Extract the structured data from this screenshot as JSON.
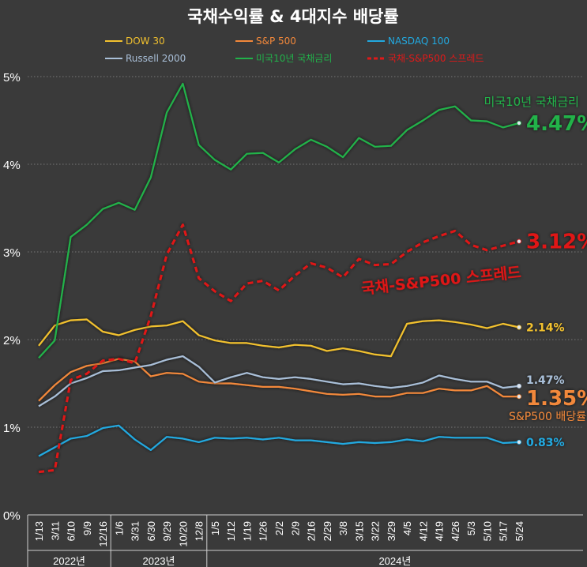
{
  "chart_data": {
    "type": "line",
    "title": "국채수익률 & 4대지수 배당률",
    "legend_position": "top",
    "grid": "horizontal-dotted",
    "ylim": [
      0,
      5
    ],
    "y_ticks": [
      "0%",
      "1%",
      "2%",
      "3%",
      "4%",
      "5%"
    ],
    "categories": [
      "1/13",
      "3/11",
      "6/10",
      "9/9",
      "12/16",
      "1/6",
      "3/31",
      "6/30",
      "9/29",
      "10/20",
      "12/8",
      "1/5",
      "1/12",
      "1/19",
      "1/26",
      "2/2",
      "2/9",
      "2/16",
      "2/29",
      "3/8",
      "3/15",
      "3/22",
      "3/29",
      "4/5",
      "4/12",
      "4/19",
      "4/26",
      "5/3",
      "5/10",
      "5/17",
      "5/24"
    ],
    "year_groups": [
      {
        "label": "2022년",
        "start": 0,
        "end": 4
      },
      {
        "label": "2023년",
        "start": 5,
        "end": 10
      },
      {
        "label": "2024년",
        "start": 11,
        "end": 30
      }
    ],
    "x_values": [
      0,
      1,
      2,
      3,
      4,
      5,
      6,
      7,
      8,
      9,
      10,
      11,
      12,
      13,
      14,
      15,
      16,
      17,
      18,
      19,
      20,
      21,
      22,
      23,
      24,
      25,
      26,
      27,
      28,
      29,
      30
    ],
    "series": [
      {
        "name": "DOW 30",
        "color": "#f2c12e",
        "dashed": false,
        "end_label": "2.14%",
        "values": [
          1.93,
          2.16,
          2.22,
          2.23,
          2.09,
          2.05,
          2.11,
          2.15,
          2.16,
          2.21,
          2.05,
          1.99,
          1.96,
          1.96,
          1.93,
          1.91,
          1.94,
          1.93,
          1.87,
          1.9,
          1.87,
          1.83,
          1.81,
          2.18,
          2.21,
          2.22,
          2.2,
          2.17,
          2.13,
          2.18,
          2.14
        ]
      },
      {
        "name": "S&P 500",
        "color": "#f2883a",
        "dashed": false,
        "end_label": "1.35%",
        "values": [
          1.3,
          1.48,
          1.63,
          1.7,
          1.73,
          1.78,
          1.75,
          1.58,
          1.62,
          1.61,
          1.52,
          1.5,
          1.5,
          1.48,
          1.46,
          1.46,
          1.44,
          1.41,
          1.38,
          1.37,
          1.38,
          1.35,
          1.35,
          1.39,
          1.39,
          1.44,
          1.42,
          1.42,
          1.47,
          1.35,
          1.35
        ]
      },
      {
        "name": "NASDAQ 100",
        "color": "#22a9e0",
        "dashed": false,
        "end_label": "0.83%",
        "values": [
          0.67,
          0.77,
          0.87,
          0.9,
          0.99,
          1.02,
          0.86,
          0.74,
          0.89,
          0.87,
          0.83,
          0.88,
          0.87,
          0.88,
          0.86,
          0.88,
          0.85,
          0.85,
          0.83,
          0.81,
          0.83,
          0.82,
          0.83,
          0.86,
          0.84,
          0.89,
          0.88,
          0.88,
          0.88,
          0.82,
          0.83
        ]
      },
      {
        "name": "Russell 2000",
        "color": "#a9bfd8",
        "dashed": false,
        "end_label": "1.47%",
        "values": [
          1.24,
          1.35,
          1.5,
          1.56,
          1.64,
          1.65,
          1.68,
          1.71,
          1.77,
          1.81,
          1.69,
          1.51,
          1.57,
          1.62,
          1.57,
          1.55,
          1.57,
          1.55,
          1.52,
          1.49,
          1.5,
          1.47,
          1.45,
          1.47,
          1.51,
          1.59,
          1.55,
          1.52,
          1.52,
          1.45,
          1.47
        ]
      },
      {
        "name": "미국10년 국채금리",
        "color": "#21b24a",
        "dashed": false,
        "end_label": "4.47%",
        "side_label": "미국10년 국채금리",
        "values": [
          1.79,
          1.99,
          3.17,
          3.31,
          3.49,
          3.56,
          3.48,
          3.85,
          4.59,
          4.92,
          4.22,
          4.05,
          3.94,
          4.12,
          4.13,
          4.02,
          4.17,
          4.28,
          4.2,
          4.08,
          4.3,
          4.2,
          4.21,
          4.39,
          4.5,
          4.62,
          4.66,
          4.5,
          4.49,
          4.42,
          4.47
        ]
      },
      {
        "name": "국채-S&P500 스프레드",
        "color": "#e01919",
        "dashed": true,
        "end_label": "3.12%",
        "side_label": "국채-S&P500 스프레드",
        "values": [
          0.49,
          0.51,
          1.54,
          1.61,
          1.76,
          1.78,
          1.73,
          2.27,
          2.97,
          3.31,
          2.7,
          2.55,
          2.44,
          2.64,
          2.67,
          2.56,
          2.73,
          2.87,
          2.82,
          2.71,
          2.92,
          2.85,
          2.86,
          3.0,
          3.11,
          3.18,
          3.24,
          3.08,
          3.02,
          3.07,
          3.12
        ]
      }
    ]
  }
}
